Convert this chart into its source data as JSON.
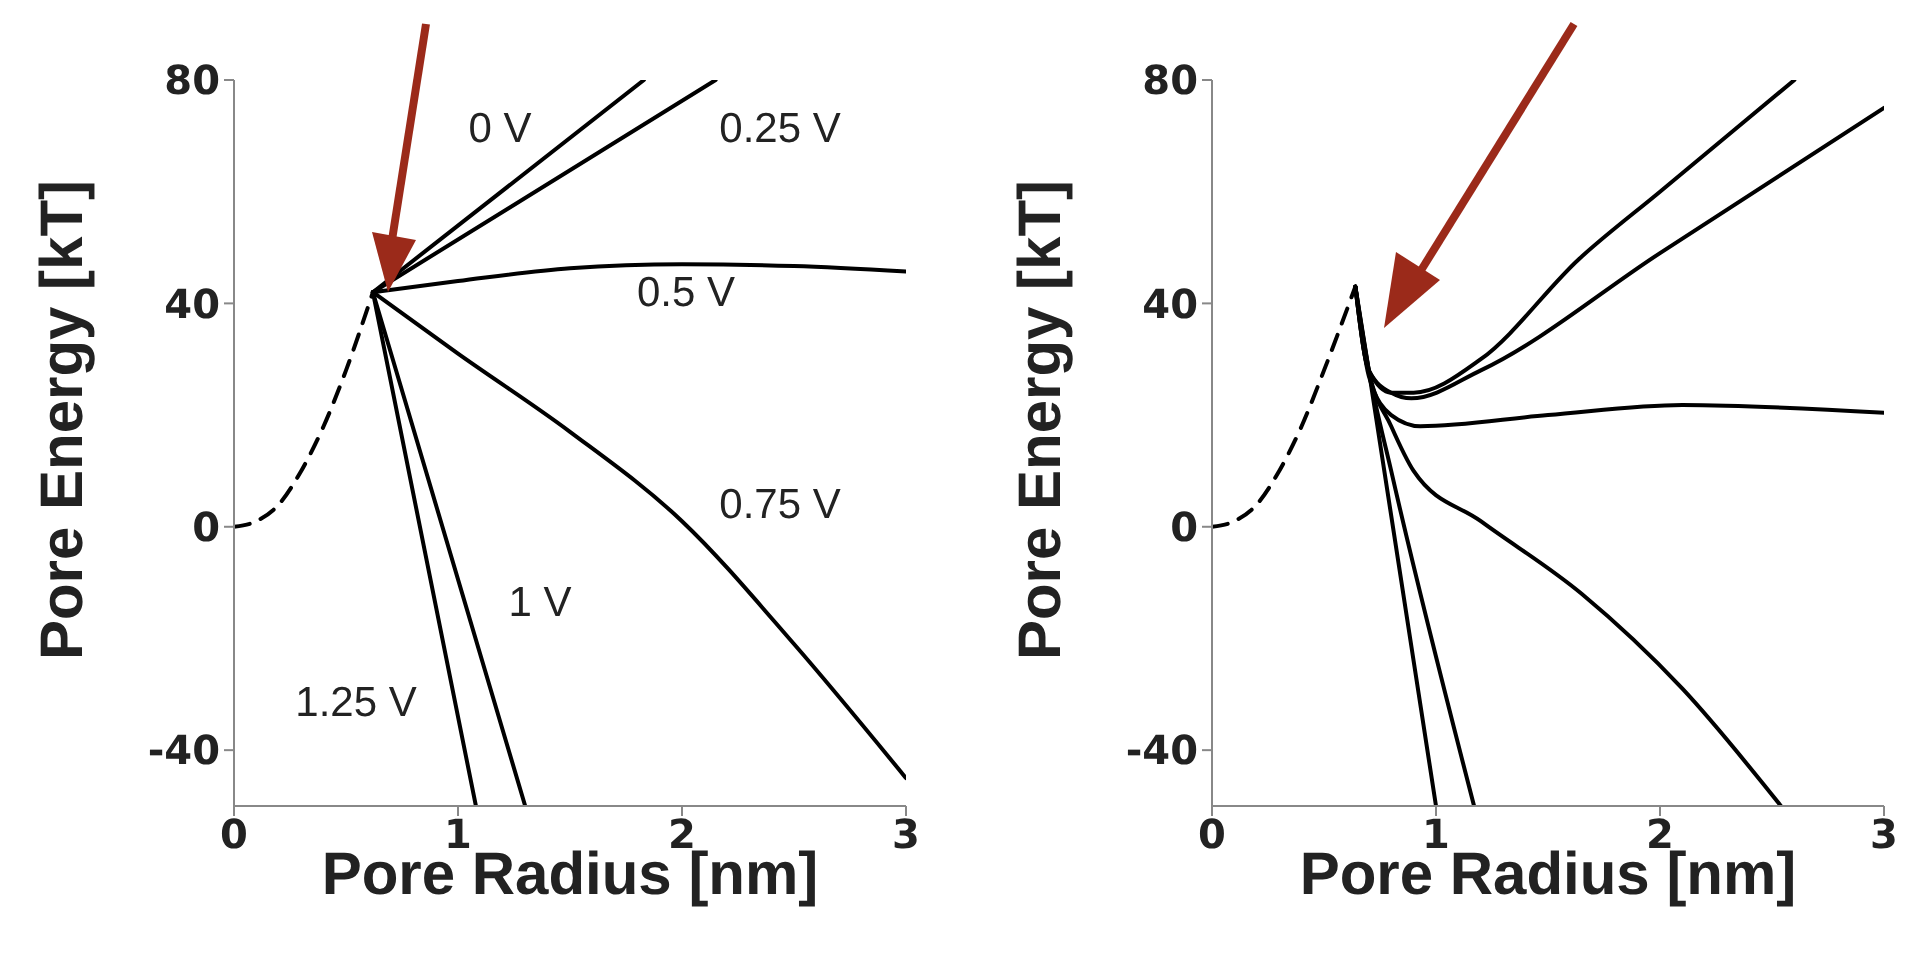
{
  "chart_data": [
    {
      "type": "line",
      "xlabel": "Pore Radius [nm]",
      "ylabel": "Pore Energy [kT]",
      "xlim": [
        0,
        3
      ],
      "xticks": [
        0,
        1,
        2,
        3
      ],
      "ylim": [
        -50,
        80
      ],
      "yticks": [
        -40,
        0,
        40,
        80
      ],
      "grid": false,
      "legend": false,
      "marker": "none",
      "series": [
        {
          "color": "#000000",
          "line_style": "dashed",
          "x": [
            0,
            0.1,
            0.2,
            0.3,
            0.4,
            0.5,
            0.62
          ],
          "values": [
            0,
            1,
            4,
            10,
            18,
            28,
            42
          ]
        },
        {
          "color": "#000000",
          "line_style": "solid",
          "x": [
            0.62,
            1.83
          ],
          "values": [
            42,
            80
          ]
        },
        {
          "color": "#000000",
          "line_style": "solid",
          "x": [
            0.62,
            2.15
          ],
          "values": [
            42,
            80
          ]
        },
        {
          "color": "#000000",
          "line_style": "solid",
          "x": [
            0.62,
            1,
            1.5,
            2,
            2.5,
            3
          ],
          "values": [
            42,
            44,
            46.3,
            47,
            46.7,
            45.7
          ]
        },
        {
          "color": "#000000",
          "line_style": "solid",
          "x": [
            0.62,
            1,
            1.5,
            2,
            2.5,
            3
          ],
          "values": [
            42,
            31,
            17,
            1,
            -21,
            -45
          ]
        },
        {
          "color": "#000000",
          "line_style": "solid",
          "x": [
            0.62,
            1.3
          ],
          "values": [
            42,
            -50
          ]
        },
        {
          "color": "#000000",
          "line_style": "solid",
          "x": [
            0.62,
            1.08
          ],
          "values": [
            42,
            -50
          ]
        }
      ],
      "annotations": [
        "0 V",
        "0.25 V",
        "0.5 V",
        "0.75 V",
        "1 V",
        "1.25 V"
      ]
    },
    {
      "type": "line",
      "xlabel": "Pore Radius [nm]",
      "ylabel": "Pore Energy [kT]",
      "xlim": [
        0,
        3
      ],
      "xticks": [
        0,
        1,
        2,
        3
      ],
      "ylim": [
        -50,
        80
      ],
      "yticks": [
        -40,
        0,
        40,
        80
      ],
      "grid": false,
      "legend": false,
      "marker": "none",
      "series": [
        {
          "color": "#000000",
          "line_style": "dashed",
          "x": [
            0,
            0.1,
            0.2,
            0.3,
            0.4,
            0.5,
            0.64
          ],
          "values": [
            0,
            1,
            4,
            10,
            18,
            28,
            43
          ]
        },
        {
          "color": "#000000",
          "line_style": "solid",
          "x": [
            0.64,
            0.7,
            0.8,
            0.9,
            1.2,
            1.64,
            2,
            2.6
          ],
          "values": [
            43,
            28,
            24,
            24,
            30,
            48,
            60,
            80
          ]
        },
        {
          "color": "#000000",
          "line_style": "solid",
          "x": [
            0.64,
            0.7,
            0.8,
            0.89,
            1.2,
            2,
            3
          ],
          "values": [
            43,
            28,
            24,
            23,
            28,
            49,
            75
          ]
        },
        {
          "color": "#000000",
          "line_style": "solid",
          "x": [
            0.64,
            0.7,
            0.8,
            0.93,
            1.5,
            2.1,
            3
          ],
          "values": [
            43,
            27,
            20,
            18,
            20,
            21.8,
            20.4
          ]
        },
        {
          "color": "#000000",
          "line_style": "solid",
          "x": [
            0.64,
            0.7,
            0.8,
            0.9,
            1.2,
            1.65,
            2.1,
            2.54
          ],
          "values": [
            43,
            28,
            18,
            10,
            1,
            -12,
            -29,
            -50
          ]
        },
        {
          "color": "#000000",
          "line_style": "solid",
          "x": [
            0.64,
            0.7,
            0.8,
            1.17
          ],
          "values": [
            43,
            28,
            10,
            -50
          ]
        },
        {
          "color": "#000000",
          "line_style": "solid",
          "x": [
            0.64,
            0.7,
            0.75,
            1.0
          ],
          "values": [
            43,
            28,
            15,
            -50
          ]
        }
      ]
    }
  ]
}
